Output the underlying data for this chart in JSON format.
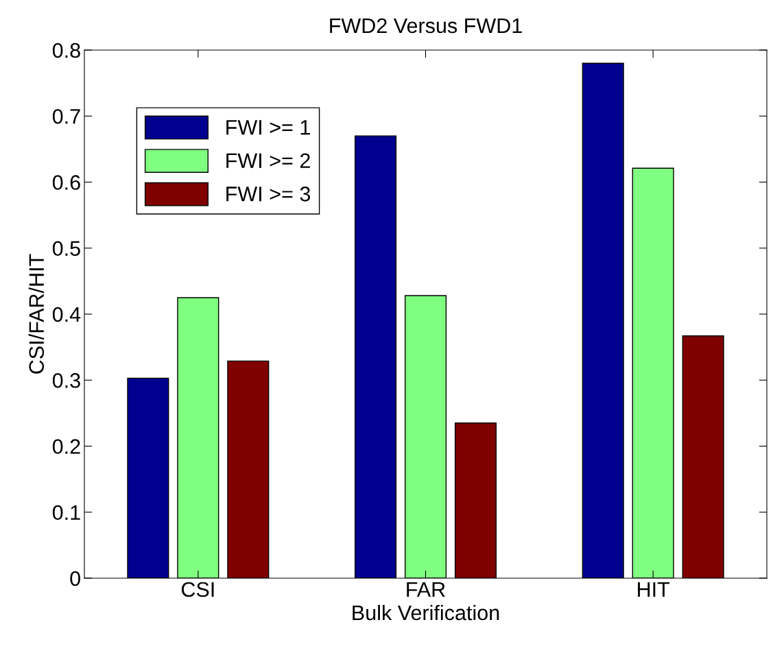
{
  "chart_data": {
    "type": "bar",
    "title": "FWD2 Versus FWD1",
    "xlabel": "Bulk Verification",
    "ylabel": "CSI/FAR/HIT",
    "categories": [
      "CSI",
      "FAR",
      "HIT"
    ],
    "series": [
      {
        "name": "FWI >= 1",
        "color": "#00008f",
        "values": [
          0.303,
          0.67,
          0.78
        ]
      },
      {
        "name": "FWI >= 2",
        "color": "#80ff80",
        "values": [
          0.425,
          0.428,
          0.621
        ]
      },
      {
        "name": "FWI >= 3",
        "color": "#800000",
        "values": [
          0.329,
          0.235,
          0.367
        ]
      }
    ],
    "ylim": [
      0,
      0.8
    ],
    "yticks": [
      0,
      0.1,
      0.2,
      0.3,
      0.4,
      0.5,
      0.6,
      0.7,
      0.8
    ],
    "grid": false,
    "legend": "top left"
  }
}
